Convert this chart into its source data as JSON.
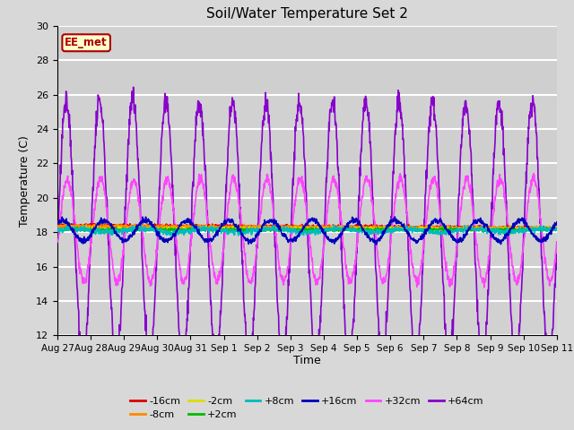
{
  "title": "Soil/Water Temperature Set 2",
  "xlabel": "Time",
  "ylabel": "Temperature (C)",
  "ylim": [
    12,
    30
  ],
  "xlim": [
    0,
    15
  ],
  "figsize": [
    6.4,
    4.8
  ],
  "dpi": 100,
  "bg_color": "#d8d8d8",
  "annotation_text": "EE_met",
  "annotation_bg": "#ffffcc",
  "annotation_border": "#aa0000",
  "tick_labels": [
    "Aug 27",
    "Aug 28",
    "Aug 29",
    "Aug 30",
    "Aug 31",
    "Sep 1",
    "Sep 2",
    "Sep 3",
    "Sep 4",
    "Sep 5",
    "Sep 6",
    "Sep 7",
    "Sep 8",
    "Sep 9",
    "Sep 10",
    "Sep 11"
  ],
  "series": {
    "-16cm": {
      "color": "#dd0000",
      "lw": 1.2,
      "zorder": 4
    },
    "-8cm": {
      "color": "#ff8800",
      "lw": 1.2,
      "zorder": 4
    },
    "-2cm": {
      "color": "#dddd00",
      "lw": 1.2,
      "zorder": 4
    },
    "+2cm": {
      "color": "#00bb00",
      "lw": 1.2,
      "zorder": 4
    },
    "+8cm": {
      "color": "#00bbbb",
      "lw": 1.2,
      "zorder": 4
    },
    "+16cm": {
      "color": "#0000bb",
      "lw": 1.2,
      "zorder": 4
    },
    "+32cm": {
      "color": "#ff44ff",
      "lw": 1.2,
      "zorder": 3
    },
    "+64cm": {
      "color": "#8800cc",
      "lw": 1.2,
      "zorder": 2
    }
  },
  "legend_order": [
    "-16cm",
    "-8cm",
    "-2cm",
    "+2cm",
    "+8cm",
    "+16cm",
    "+32cm",
    "+64cm"
  ]
}
